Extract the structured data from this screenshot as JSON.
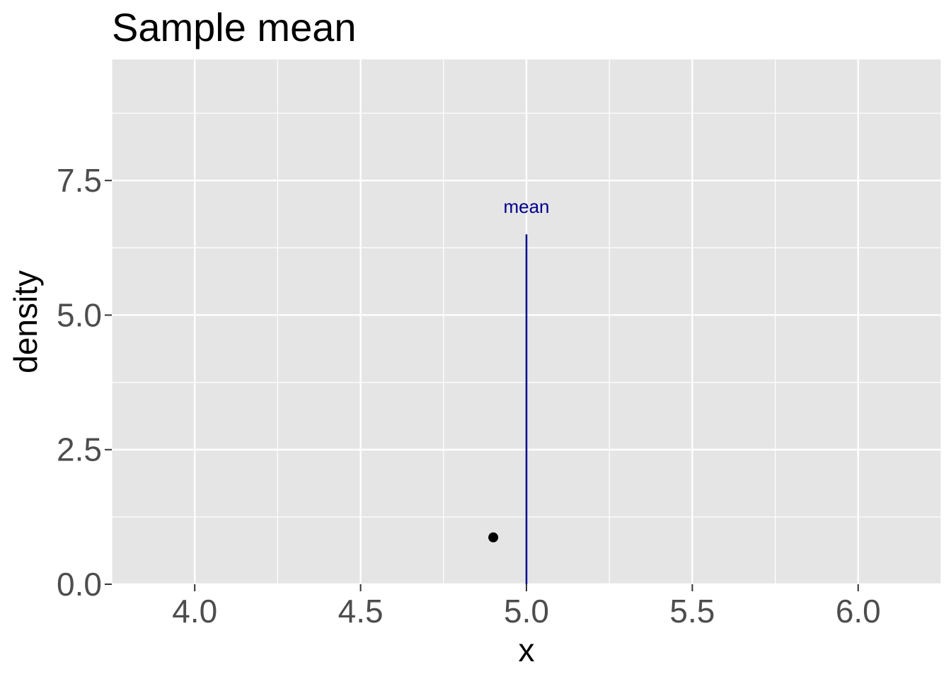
{
  "chart_data": {
    "type": "scatter",
    "title": "Sample mean",
    "xlabel": "x",
    "ylabel": "density",
    "xlim": [
      3.75,
      6.25
    ],
    "ylim": [
      0,
      9.75
    ],
    "x_ticks": [
      4.0,
      4.5,
      5.0,
      5.5,
      6.0
    ],
    "x_tick_labels": [
      "4.0",
      "4.5",
      "5.0",
      "5.5",
      "6.0"
    ],
    "x_minor_ticks": [
      3.75,
      4.25,
      4.75,
      5.25,
      5.75,
      6.25
    ],
    "y_ticks": [
      0.0,
      2.5,
      5.0,
      7.5
    ],
    "y_tick_labels": [
      "0.0",
      "2.5",
      "5.0",
      "7.5"
    ],
    "y_minor_ticks": [
      1.25,
      3.75,
      6.25,
      8.75
    ],
    "grid": true,
    "points": [
      {
        "x": 4.9,
        "y": 0.87
      }
    ],
    "mean_line": {
      "x": 5.0,
      "y_start": 0,
      "y_end": 6.5
    },
    "annotation": {
      "text": "mean",
      "x": 5.0,
      "y": 6.9
    },
    "colors": {
      "panel": "#e5e5e5",
      "grid": "#ffffff",
      "point": "#000000",
      "mean_line": "#00008b",
      "annotation": "#00008b",
      "tick": "#333333"
    }
  }
}
